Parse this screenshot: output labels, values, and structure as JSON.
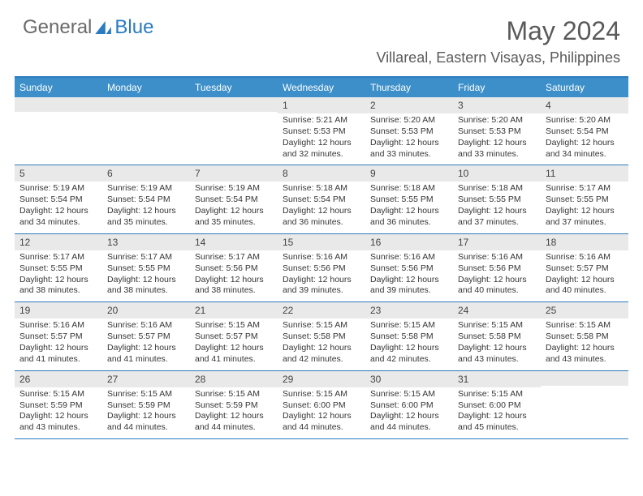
{
  "brand": {
    "part1": "General",
    "part2": "Blue"
  },
  "title": {
    "month_year": "May 2024",
    "location": "Villareal, Eastern Visayas, Philippines"
  },
  "colors": {
    "header_bar": "#3d8fc9",
    "header_rule": "#2a7bbf",
    "day_number_bg": "#e9e9e9",
    "text_muted": "#5a5a5a",
    "text_body": "#353535",
    "logo_gray": "#6a6a6a",
    "logo_blue": "#2a7bbf"
  },
  "week_headers": [
    "Sunday",
    "Monday",
    "Tuesday",
    "Wednesday",
    "Thursday",
    "Friday",
    "Saturday"
  ],
  "weeks": [
    [
      {
        "blank": true
      },
      {
        "blank": true
      },
      {
        "blank": true
      },
      {
        "d": "1",
        "sr": "5:21 AM",
        "ss": "5:53 PM",
        "dl": "12 hours and 32 minutes."
      },
      {
        "d": "2",
        "sr": "5:20 AM",
        "ss": "5:53 PM",
        "dl": "12 hours and 33 minutes."
      },
      {
        "d": "3",
        "sr": "5:20 AM",
        "ss": "5:53 PM",
        "dl": "12 hours and 33 minutes."
      },
      {
        "d": "4",
        "sr": "5:20 AM",
        "ss": "5:54 PM",
        "dl": "12 hours and 34 minutes."
      }
    ],
    [
      {
        "d": "5",
        "sr": "5:19 AM",
        "ss": "5:54 PM",
        "dl": "12 hours and 34 minutes."
      },
      {
        "d": "6",
        "sr": "5:19 AM",
        "ss": "5:54 PM",
        "dl": "12 hours and 35 minutes."
      },
      {
        "d": "7",
        "sr": "5:19 AM",
        "ss": "5:54 PM",
        "dl": "12 hours and 35 minutes."
      },
      {
        "d": "8",
        "sr": "5:18 AM",
        "ss": "5:54 PM",
        "dl": "12 hours and 36 minutes."
      },
      {
        "d": "9",
        "sr": "5:18 AM",
        "ss": "5:55 PM",
        "dl": "12 hours and 36 minutes."
      },
      {
        "d": "10",
        "sr": "5:18 AM",
        "ss": "5:55 PM",
        "dl": "12 hours and 37 minutes."
      },
      {
        "d": "11",
        "sr": "5:17 AM",
        "ss": "5:55 PM",
        "dl": "12 hours and 37 minutes."
      }
    ],
    [
      {
        "d": "12",
        "sr": "5:17 AM",
        "ss": "5:55 PM",
        "dl": "12 hours and 38 minutes."
      },
      {
        "d": "13",
        "sr": "5:17 AM",
        "ss": "5:55 PM",
        "dl": "12 hours and 38 minutes."
      },
      {
        "d": "14",
        "sr": "5:17 AM",
        "ss": "5:56 PM",
        "dl": "12 hours and 38 minutes."
      },
      {
        "d": "15",
        "sr": "5:16 AM",
        "ss": "5:56 PM",
        "dl": "12 hours and 39 minutes."
      },
      {
        "d": "16",
        "sr": "5:16 AM",
        "ss": "5:56 PM",
        "dl": "12 hours and 39 minutes."
      },
      {
        "d": "17",
        "sr": "5:16 AM",
        "ss": "5:56 PM",
        "dl": "12 hours and 40 minutes."
      },
      {
        "d": "18",
        "sr": "5:16 AM",
        "ss": "5:57 PM",
        "dl": "12 hours and 40 minutes."
      }
    ],
    [
      {
        "d": "19",
        "sr": "5:16 AM",
        "ss": "5:57 PM",
        "dl": "12 hours and 41 minutes."
      },
      {
        "d": "20",
        "sr": "5:16 AM",
        "ss": "5:57 PM",
        "dl": "12 hours and 41 minutes."
      },
      {
        "d": "21",
        "sr": "5:15 AM",
        "ss": "5:57 PM",
        "dl": "12 hours and 41 minutes."
      },
      {
        "d": "22",
        "sr": "5:15 AM",
        "ss": "5:58 PM",
        "dl": "12 hours and 42 minutes."
      },
      {
        "d": "23",
        "sr": "5:15 AM",
        "ss": "5:58 PM",
        "dl": "12 hours and 42 minutes."
      },
      {
        "d": "24",
        "sr": "5:15 AM",
        "ss": "5:58 PM",
        "dl": "12 hours and 43 minutes."
      },
      {
        "d": "25",
        "sr": "5:15 AM",
        "ss": "5:58 PM",
        "dl": "12 hours and 43 minutes."
      }
    ],
    [
      {
        "d": "26",
        "sr": "5:15 AM",
        "ss": "5:59 PM",
        "dl": "12 hours and 43 minutes."
      },
      {
        "d": "27",
        "sr": "5:15 AM",
        "ss": "5:59 PM",
        "dl": "12 hours and 44 minutes."
      },
      {
        "d": "28",
        "sr": "5:15 AM",
        "ss": "5:59 PM",
        "dl": "12 hours and 44 minutes."
      },
      {
        "d": "29",
        "sr": "5:15 AM",
        "ss": "6:00 PM",
        "dl": "12 hours and 44 minutes."
      },
      {
        "d": "30",
        "sr": "5:15 AM",
        "ss": "6:00 PM",
        "dl": "12 hours and 44 minutes."
      },
      {
        "d": "31",
        "sr": "5:15 AM",
        "ss": "6:00 PM",
        "dl": "12 hours and 45 minutes."
      },
      {
        "blank": true
      }
    ]
  ],
  "labels": {
    "sunrise": "Sunrise:",
    "sunset": "Sunset:",
    "daylight": "Daylight:"
  }
}
